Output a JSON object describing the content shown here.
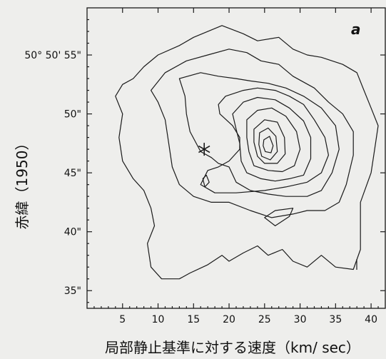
{
  "chart_data": {
    "type": "contour",
    "panel_label": "a",
    "xlabel": "局部静止基準に対する速度（km/ sec）",
    "ylabel": "赤緯（1950）",
    "xlim": [
      0,
      42
    ],
    "ylim": [
      33.5,
      59
    ],
    "x_ticks": [
      5,
      10,
      15,
      20,
      25,
      30,
      35,
      40
    ],
    "x_tick_labels": [
      "5",
      "10",
      "15",
      "20",
      "25",
      "30",
      "35",
      "40"
    ],
    "y_ticks": [
      35,
      40,
      45,
      50,
      55
    ],
    "y_tick_labels": [
      "35\"",
      "40\"",
      "45\"",
      "50\"",
      "50° 50' 55\""
    ],
    "markers": [
      {
        "type": "star",
        "x": 16.5,
        "y": 47.0
      }
    ],
    "contours": [
      {
        "level": 1,
        "points": [
          [
            10,
            55
          ],
          [
            13,
            55.8
          ],
          [
            15,
            56.5
          ],
          [
            19,
            57.5
          ],
          [
            22,
            56.8
          ],
          [
            24,
            56.2
          ],
          [
            27,
            56.5
          ],
          [
            29,
            55.5
          ],
          [
            31,
            55
          ],
          [
            33,
            54.8
          ],
          [
            36,
            54.2
          ],
          [
            38,
            53.5
          ],
          [
            39,
            52
          ],
          [
            40,
            50.5
          ],
          [
            41,
            49
          ],
          [
            40.5,
            47
          ],
          [
            40,
            45
          ],
          [
            38.5,
            42.5
          ],
          [
            38.5,
            40.5
          ],
          [
            38.5,
            38.5
          ],
          [
            37.5,
            36.8
          ],
          [
            35,
            37
          ],
          [
            33,
            38
          ],
          [
            31,
            37
          ],
          [
            29,
            37.5
          ],
          [
            27.5,
            38.5
          ],
          [
            25.5,
            38
          ],
          [
            24,
            38.8
          ],
          [
            22,
            38.2
          ],
          [
            20,
            37.5
          ],
          [
            19,
            38
          ],
          [
            17,
            37.2
          ],
          [
            14.5,
            36.5
          ],
          [
            13,
            36
          ],
          [
            10.5,
            36
          ],
          [
            9,
            37
          ],
          [
            8.5,
            39
          ],
          [
            9.5,
            40.5
          ],
          [
            9,
            42
          ],
          [
            8,
            43.5
          ],
          [
            6.5,
            44.5
          ],
          [
            5,
            46
          ],
          [
            4.5,
            48
          ],
          [
            5,
            50
          ],
          [
            4,
            51.5
          ],
          [
            5,
            52.5
          ],
          [
            6.5,
            53
          ],
          [
            8,
            54
          ]
        ]
      },
      {
        "level": 2,
        "points": [
          [
            9,
            52
          ],
          [
            11,
            53.5
          ],
          [
            14,
            54.5
          ],
          [
            17,
            55
          ],
          [
            20,
            55.5
          ],
          [
            22.5,
            55.2
          ],
          [
            24.5,
            54.5
          ],
          [
            27,
            54.2
          ],
          [
            29,
            53.2
          ],
          [
            32,
            52.2
          ],
          [
            34,
            51
          ],
          [
            36,
            50
          ],
          [
            37.5,
            48.5
          ],
          [
            37.5,
            46.5
          ],
          [
            36.5,
            44
          ],
          [
            35.5,
            42.5
          ],
          [
            33.5,
            41.8
          ],
          [
            31,
            41.8
          ],
          [
            29,
            41.5
          ],
          [
            26,
            41.2
          ],
          [
            23,
            41.8
          ],
          [
            20,
            42.5
          ],
          [
            17.5,
            42.5
          ],
          [
            15,
            43
          ],
          [
            13,
            44
          ],
          [
            12,
            45.5
          ],
          [
            11.5,
            47.5
          ],
          [
            11,
            49.5
          ],
          [
            10,
            51
          ]
        ]
      },
      {
        "level": 3,
        "points": [
          [
            13,
            53
          ],
          [
            16,
            53.5
          ],
          [
            18.5,
            53.2
          ],
          [
            21,
            53
          ],
          [
            23,
            52.8
          ],
          [
            25.5,
            52.6
          ],
          [
            28,
            52.2
          ],
          [
            30.5,
            51.5
          ],
          [
            33,
            50.5
          ],
          [
            35,
            49
          ],
          [
            35.5,
            47
          ],
          [
            34.5,
            45
          ],
          [
            33,
            43.5
          ],
          [
            31,
            43
          ],
          [
            28,
            43
          ],
          [
            25.5,
            43.2
          ],
          [
            23,
            43.5
          ],
          [
            21,
            44.2
          ],
          [
            20,
            45.5
          ],
          [
            18.5,
            45.8
          ],
          [
            17.5,
            46.3
          ],
          [
            16,
            46.8
          ],
          [
            14.5,
            48.5
          ],
          [
            14,
            50
          ],
          [
            13.8,
            51.5
          ]
        ]
      },
      {
        "level": 4,
        "points": [
          [
            16,
            44
          ],
          [
            18,
            43.3
          ],
          [
            21,
            43.3
          ],
          [
            25,
            43.5
          ],
          [
            28,
            43.8
          ],
          [
            31,
            44.2
          ],
          [
            33,
            45
          ],
          [
            34,
            46.5
          ],
          [
            33.5,
            48
          ],
          [
            32,
            49.5
          ],
          [
            30.5,
            50.8
          ],
          [
            28.5,
            51.5
          ],
          [
            26.5,
            52
          ],
          [
            24,
            52.2
          ],
          [
            22,
            52
          ],
          [
            19.5,
            51.5
          ],
          [
            18.5,
            50.8
          ],
          [
            18.7,
            50
          ],
          [
            20.5,
            49
          ],
          [
            21.5,
            48
          ],
          [
            21.5,
            47
          ],
          [
            20,
            46
          ],
          [
            18.5,
            45.5
          ],
          [
            17,
            45.2
          ]
        ]
      },
      {
        "level": 5,
        "points": [
          [
            20.5,
            50
          ],
          [
            22,
            51
          ],
          [
            24,
            51.4
          ],
          [
            26.5,
            51.2
          ],
          [
            28.5,
            50.5
          ],
          [
            30.5,
            49.4
          ],
          [
            31.5,
            48
          ],
          [
            31.5,
            46.2
          ],
          [
            30.5,
            44.8
          ],
          [
            28.5,
            44.5
          ],
          [
            26.5,
            44.3
          ],
          [
            24.5,
            44.5
          ],
          [
            22.5,
            45
          ],
          [
            21.7,
            46
          ],
          [
            21.5,
            47.5
          ],
          [
            21,
            48.7
          ]
        ]
      },
      {
        "level": 6,
        "points": [
          [
            22.5,
            49.5
          ],
          [
            24,
            50.3
          ],
          [
            26,
            50.5
          ],
          [
            28,
            49.8
          ],
          [
            29.5,
            48.5
          ],
          [
            30,
            47
          ],
          [
            29.2,
            45.6
          ],
          [
            27.5,
            45.1
          ],
          [
            25.5,
            45.2
          ],
          [
            23.5,
            45.6
          ],
          [
            22.8,
            46.8
          ],
          [
            22.5,
            48
          ]
        ]
      },
      {
        "level": 7,
        "points": [
          [
            23.5,
            48.7
          ],
          [
            25,
            49.5
          ],
          [
            26.8,
            49.3
          ],
          [
            27.8,
            48
          ],
          [
            27.9,
            46.6
          ],
          [
            26.8,
            45.8
          ],
          [
            25,
            45.8
          ],
          [
            24,
            46.4
          ],
          [
            23.5,
            47.6
          ]
        ]
      },
      {
        "level": 8,
        "points": [
          [
            24.3,
            48.4
          ],
          [
            25.5,
            48.8
          ],
          [
            26.6,
            48.1
          ],
          [
            26.8,
            46.8
          ],
          [
            25.8,
            46.1
          ],
          [
            24.6,
            46.4
          ],
          [
            24.2,
            47.4
          ]
        ]
      },
      {
        "level": 9,
        "points": [
          [
            24.9,
            47.8
          ],
          [
            25.7,
            48.1
          ],
          [
            26.2,
            47.3
          ],
          [
            25.9,
            46.7
          ],
          [
            25.1,
            46.8
          ],
          [
            24.8,
            47.3
          ]
        ]
      },
      {
        "level": 10,
        "points": [
          [
            16.3,
            44.5
          ],
          [
            16.8,
            44.8
          ],
          [
            17.2,
            44.2
          ],
          [
            16.6,
            43.8
          ]
        ]
      },
      {
        "level": 11,
        "points": [
          [
            25,
            41.2
          ],
          [
            26.5,
            41.8
          ],
          [
            29,
            42
          ],
          [
            28.5,
            41.3
          ],
          [
            26.5,
            40.5
          ]
        ]
      }
    ]
  }
}
